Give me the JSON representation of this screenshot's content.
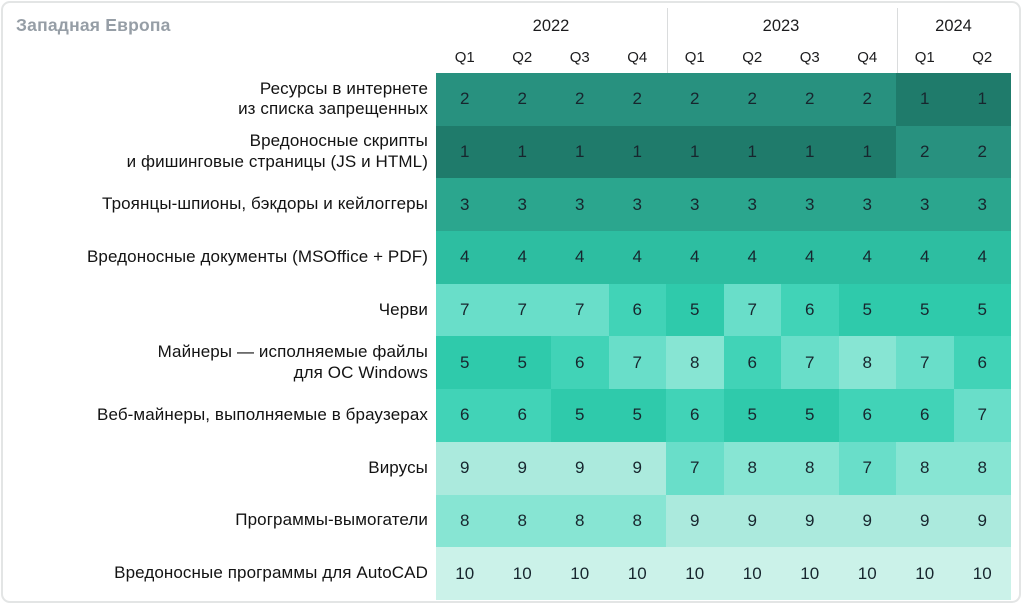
{
  "title": "Западная Европа",
  "header": {
    "years": [
      {
        "label": "2022",
        "span": 4
      },
      {
        "label": "2023",
        "span": 4
      },
      {
        "label": "2024",
        "span": 2
      }
    ],
    "quarters": [
      "Q1",
      "Q2",
      "Q3",
      "Q4",
      "Q1",
      "Q2",
      "Q3",
      "Q4",
      "Q1",
      "Q2"
    ]
  },
  "chart_data": {
    "type": "heatmap",
    "title": "Западная Европа",
    "value_meaning": "rank (1 = top threat, 10 = lowest)",
    "columns": [
      "2022 Q1",
      "2022 Q2",
      "2022 Q3",
      "2022 Q4",
      "2023 Q1",
      "2023 Q2",
      "2023 Q3",
      "2023 Q4",
      "2024 Q1",
      "2024 Q2"
    ],
    "rows": [
      {
        "label": "Ресурсы в интернете\nиз списка запрещенных",
        "values": [
          2,
          2,
          2,
          2,
          2,
          2,
          2,
          2,
          1,
          1
        ]
      },
      {
        "label": "Вредоносные скрипты\nи фишинговые страницы (JS и HTML)",
        "values": [
          1,
          1,
          1,
          1,
          1,
          1,
          1,
          1,
          2,
          2
        ]
      },
      {
        "label": "Троянцы-шпионы, бэкдоры и кейлоггеры",
        "values": [
          3,
          3,
          3,
          3,
          3,
          3,
          3,
          3,
          3,
          3
        ]
      },
      {
        "label": "Вредоносные документы (MSOffice + PDF)",
        "values": [
          4,
          4,
          4,
          4,
          4,
          4,
          4,
          4,
          4,
          4
        ]
      },
      {
        "label": "Черви",
        "values": [
          7,
          7,
          7,
          6,
          5,
          7,
          6,
          5,
          5,
          5
        ]
      },
      {
        "label": "Майнеры — исполняемые файлы\nдля ОС Windows",
        "values": [
          5,
          5,
          6,
          7,
          8,
          6,
          7,
          8,
          7,
          6
        ]
      },
      {
        "label": "Веб-майнеры, выполняемые в браузерах",
        "values": [
          6,
          6,
          5,
          5,
          6,
          5,
          5,
          6,
          6,
          7
        ]
      },
      {
        "label": "Вирусы",
        "values": [
          9,
          9,
          9,
          9,
          7,
          8,
          8,
          7,
          8,
          8
        ]
      },
      {
        "label": "Программы-вымогатели",
        "values": [
          8,
          8,
          8,
          8,
          9,
          9,
          9,
          9,
          9,
          9
        ]
      },
      {
        "label": "Вредоносные программы для AutoCAD",
        "values": [
          10,
          10,
          10,
          10,
          10,
          10,
          10,
          10,
          10,
          10
        ]
      }
    ],
    "legend_position": "none",
    "grid": false
  },
  "palette": {
    "1": "#1F7B6B",
    "2": "#28917F",
    "3": "#2BA68E",
    "4": "#2DBEA1",
    "5": "#2FCAAB",
    "6": "#41D3B7",
    "7": "#69DEC9",
    "8": "#87E5D3",
    "9": "#ABEADD",
    "10": "#CBF2E9"
  },
  "colors": {
    "title_text": "#969EA6",
    "label_text": "#131313",
    "cell_text": "#17262E",
    "header_text": "#1C1C1E",
    "card_border": "#E3E5E5",
    "year_separator": "#DADCDD"
  }
}
